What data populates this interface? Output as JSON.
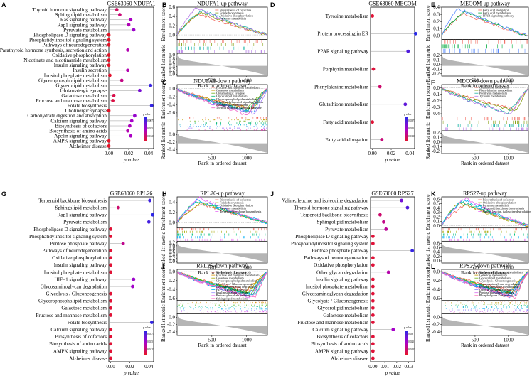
{
  "figure": {
    "panel_letters": [
      "A",
      "B",
      "C",
      "D",
      "E",
      "F",
      "G",
      "H",
      "I",
      "J",
      "K",
      "L"
    ]
  },
  "gsea_axes": {
    "y_top_label": "Enrichment score",
    "y_bottom_label": "Ranked list metric",
    "x_label": "Rank in ordered dataset",
    "x_ticks": [
      "500",
      "1000"
    ]
  },
  "chart_data": [
    {
      "type": "scatter",
      "panel": "A",
      "title": "GSE63060 NDUFA1",
      "xlabel": "p value",
      "xlim": [
        0,
        0.045
      ],
      "x_ticks": [
        "0.00",
        "0.02",
        "0.04"
      ],
      "legend_title": "p value",
      "legend_ticks": [
        "0.0075",
        "0.025",
        "0.0125"
      ],
      "categories": [
        "Thyroid hormone signaling pathway",
        "Sphingolipid metabolism",
        "Ras signaling pathway",
        "Rap1 signaling pathway",
        "Pyruvate metabolism",
        "Phospholipase D signaling pathway",
        "Phosphatidylinositol signaling system",
        "Pathways of neurodegeneration",
        "Parathyroid hormone synthesis, secretion and action",
        "Oxidative phosphorylation",
        "Nicotinate and nicotinamide metabolism",
        "Insulin signaling pathway",
        "Insulin secretion",
        "Inositol phosphate metabolism",
        "Glycerophospholipid metabolism",
        "Glycerolipid metabolism",
        "Glutamatergic synapse",
        "Galactose metabolism",
        "Fructose and mannose metabolism",
        "Folate biosynthesis",
        "Cholinergic synapse",
        "Carbohydrate digestion and absorption",
        "Calcium signaling pathway",
        "Biosynthesis of cofactors",
        "Biosynthesis of amino acids",
        "Apelin signaling pathway",
        "AMPK signaling pathway",
        "Alzheimer disease"
      ],
      "values": [
        0.008,
        0.011,
        0.022,
        0.02,
        0.025,
        0.0,
        0.0,
        0.0,
        0.019,
        0.0,
        0.0,
        0.0,
        0.019,
        0.001,
        0.013,
        0.042,
        0.031,
        0.005,
        0.004,
        0.043,
        0.0,
        0.026,
        0.023,
        0.021,
        0.019,
        0.022,
        0.0,
        0.0
      ]
    },
    {
      "type": "scatter",
      "panel": "D",
      "title": "GSE63060 MECOM",
      "xlabel": "p value",
      "xlim": [
        -0.002,
        0.045
      ],
      "x_ticks": [
        "0.00",
        "0.02",
        "0.04"
      ],
      "legend_title": "p value",
      "legend_ticks": [
        "0.0375",
        "0.025",
        "0.0125"
      ],
      "categories": [
        "Tyrosine metabolism",
        "Protein processing in ER",
        "PPAR signaling pathway",
        "Porphyrin metabolism",
        "Phenylalanine metabolism",
        "Glutathione metabolism",
        "Fatty acid metabolism",
        "Fatty acid elongation"
      ],
      "values": [
        0.0,
        0.046,
        0.038,
        0.001,
        0.008,
        0.035,
        0.0,
        0.01
      ]
    },
    {
      "type": "scatter",
      "panel": "G",
      "title": "GSE63060 RPL26",
      "xlabel": "p value",
      "xlim": [
        -0.002,
        0.045
      ],
      "x_ticks": [
        "0.00",
        "0.02",
        "0.04"
      ],
      "legend_title": "p value",
      "legend_ticks": [
        "0.0375",
        "0.025",
        "0.0125"
      ],
      "categories": [
        "Terpenoid backbone biosynthesis",
        "Sphingolipid metabolism",
        "Rap1 signaling pathway",
        "Pyruvate metabolism",
        "Phospholipase D signaling pathway",
        "Phosphatidylinositol signaling system",
        "Pentose phosphate pathway",
        "Pathways of neurodegeneration",
        "Oxidative phosphorylation",
        "Insulin signaling pathway",
        "Inositol phosphate metabolism",
        "HIF−1 signaling pathway",
        "Glycosaminoglycan degradation",
        "Glycolysis / Gluconeogenesis",
        "Glycerophospholipid metabolism",
        "Galactose metabolism",
        "Fructose and mannose metabolism",
        "Folate biosynthesis",
        "Calcium signaling pathway",
        "Biosynthesis of cofactors",
        "Biosynthesis of amino acids",
        "AMPK signaling pathway",
        "Alzheimer disease"
      ],
      "values": [
        0.041,
        0.008,
        0.044,
        0.04,
        0.0,
        0.0,
        0.013,
        0.0,
        0.0,
        0.0,
        0.0,
        0.024,
        0.023,
        0.0,
        0.0,
        0.0,
        0.0,
        0.043,
        0.0,
        0.0,
        0.0,
        0.0,
        0.0
      ]
    },
    {
      "type": "scatter",
      "panel": "J",
      "title": "GSE63060 RPS27",
      "xlabel": "p value",
      "xlim": [
        -0.002,
        0.035
      ],
      "x_ticks": [
        "0.00",
        "0.01",
        "0.02",
        "0.03"
      ],
      "legend_title": "p value",
      "legend_ticks": [
        "0.03",
        "0.025",
        "0.0125"
      ],
      "categories": [
        "Valine, leucine and isoleucine degradation",
        "Thyroid hormone signaling pathway",
        "Terpenoid backbone biosynthesis",
        "Sphingolipid metabolism",
        "Pyruvate metabolism",
        "Phospholipase D signaling pathway",
        "Phosphatidylinositol signaling system",
        "Pentose phosphate pathway",
        "Pathways of neurodegeneration",
        "Oxidative phosphorylation",
        "Other glycan degradation",
        "Insulin signaling pathway",
        "Inositol phosphate metabolism",
        "Glycosaminoglycan degradation",
        "Glycolysis / Gluconeogenesis",
        "Glycerolipid metabolism",
        "Galactose metabolism",
        "Fructose and mannose metabolism",
        "Calcium signaling pathway",
        "Biosynthesis of cofactors",
        "Biosynthesis of amino acids",
        "AMPK signaling pathway",
        "Alzheimer disease"
      ],
      "values": [
        0.024,
        0.029,
        0.006,
        0.009,
        0.011,
        0.0,
        0.0,
        0.033,
        0.0,
        0.0,
        0.013,
        0.0,
        0.0,
        0.0,
        0.0,
        0.0,
        0.0,
        0.0,
        0.017,
        0.0,
        0.0,
        0.0,
        0.0
      ]
    },
    {
      "type": "line",
      "panel": "B",
      "title": "NDUFA1-up pathway",
      "ylim": [
        -0.1,
        0.6
      ],
      "y_ticks": [
        "0.0",
        "0.2",
        "0.4",
        "0.6"
      ],
      "metric_ticks": [
        "1.0",
        "0.8",
        "0.6",
        "0.4",
        "0.2",
        "0.0"
      ],
      "series": [
        {
          "name": "Biosynthesis of cofactors",
          "color": "#f26a5f"
        },
        {
          "name": "Folate biosynthesis",
          "color": "#8aa21c"
        },
        {
          "name": "Oxidative phosphorylation",
          "color": "#1bb3a5"
        },
        {
          "name": "Pyruvate metabolism",
          "color": "#b57ae8"
        }
      ]
    },
    {
      "type": "line",
      "panel": "C",
      "title": "NDUFA1-down pathway",
      "ylim": [
        -0.7,
        0.1
      ],
      "y_ticks": [
        "0.0",
        "-0.2",
        "-0.4",
        "-0.6"
      ],
      "metric_ticks": [
        "0.0",
        "-0.2",
        "-0.4"
      ],
      "series": [
        {
          "name": "Fructose and mannose metabolism",
          "color": "#f26a5f"
        },
        {
          "name": "Galactose metabolism",
          "color": "#c59a00"
        },
        {
          "name": "Glutamatergic synapse",
          "color": "#6fb21b"
        },
        {
          "name": "Glycerolipid metabolism",
          "color": "#00b66b"
        },
        {
          "name": "Glycerophospholipid metabolism",
          "color": "#00b2c8"
        },
        {
          "name": "Phosphatidylinositol signaling system",
          "color": "#2f9bf0"
        },
        {
          "name": "Sphingolipid metabolism",
          "color": "#a67bff"
        },
        {
          "name": "Thyroid hormone signaling pathway",
          "color": "#f05fc6"
        }
      ]
    },
    {
      "type": "line",
      "panel": "E",
      "title": "MECOM-up pathway",
      "ylim": [
        -0.05,
        0.4
      ],
      "y_ticks": [
        "0.0",
        "0.1",
        "0.2",
        "0.3",
        "0.4"
      ],
      "metric_ticks": [
        "0.2",
        "0.1",
        "0.0",
        "-0.1",
        "-0.2"
      ],
      "series": [
        {
          "name": "Fatty acid elongation",
          "color": "#f26a5f"
        },
        {
          "name": "Fatty acid metabolism",
          "color": "#00a83c"
        },
        {
          "name": "PPAR signaling pathway",
          "color": "#5a8cff"
        }
      ]
    },
    {
      "type": "line",
      "panel": "F",
      "title": "MECOM-down pathway",
      "ylim": [
        -0.45,
        0.05
      ],
      "y_ticks": [
        "0.0",
        "-0.1",
        "-0.2",
        "-0.3",
        "-0.4"
      ],
      "metric_ticks": [
        "0.2",
        "0.1",
        "0.0",
        "-0.1",
        "-0.2"
      ],
      "series": [
        {
          "name": "Glutathione metabolism",
          "color": "#f26a5f"
        },
        {
          "name": "Phenylalanine metabolism",
          "color": "#8aa21c"
        },
        {
          "name": "Porphyrin metabolism",
          "color": "#1bb3a5"
        },
        {
          "name": "Tyrosine metabolism",
          "color": "#b57ae8"
        }
      ]
    },
    {
      "type": "line",
      "panel": "H",
      "title": "RPL26-up pathway",
      "ylim": [
        -0.1,
        0.5
      ],
      "y_ticks": [
        "0.0",
        "0.2",
        "0.4"
      ],
      "metric_ticks": [
        "1.2",
        "1.0",
        "0.8",
        "0.6",
        "0.4",
        "0.2",
        "0.0"
      ],
      "series": [
        {
          "name": "Biosynthesis of cofactors",
          "color": "#f26a5f"
        },
        {
          "name": "Folate biosynthesis",
          "color": "#a3a500"
        },
        {
          "name": "Oxidative phosphorylation",
          "color": "#00bf7d"
        },
        {
          "name": "Pyruvate metabolism",
          "color": "#00b0f6"
        },
        {
          "name": "Terpenoid backbone biosynthesis",
          "color": "#e76bf3"
        }
      ]
    },
    {
      "type": "line",
      "panel": "I",
      "title": "RPL26-down pathway",
      "ylim": [
        -0.65,
        0.05
      ],
      "y_ticks": [
        "0.0",
        "-0.2",
        "-0.4",
        "-0.6"
      ],
      "metric_ticks": [
        "0.0",
        "-0.2",
        "-0.4"
      ],
      "series": [
        {
          "name": "Biosynthesis of amino acids",
          "color": "#f26a5f"
        },
        {
          "name": "Fructose and mannose metabolism",
          "color": "#d89000"
        },
        {
          "name": "Galactose metabolism",
          "color": "#a3a500"
        },
        {
          "name": "Glycerophospholipid metabolism",
          "color": "#39b600"
        },
        {
          "name": "Glycolysis / Gluconeogenesis",
          "color": "#00bf7d"
        },
        {
          "name": "Glycosaminoglycan degradation",
          "color": "#00bfc4"
        },
        {
          "name": "HIF-1 signaling pathway",
          "color": "#00b0f6"
        },
        {
          "name": "Insulin signaling pathway",
          "color": "#9590ff"
        },
        {
          "name": "Pentose phosphate pathway",
          "color": "#e76bf3"
        },
        {
          "name": "Sphingolipid metabolism",
          "color": "#ff62bc"
        }
      ]
    },
    {
      "type": "line",
      "panel": "K",
      "title": "RPS27-up pathway",
      "ylim": [
        -0.05,
        0.65
      ],
      "y_ticks": [
        "0.0",
        "0.1",
        "0.2",
        "0.3",
        "0.4",
        "0.5",
        "0.6"
      ],
      "metric_ticks": [
        "0.8",
        "0.6",
        "0.4",
        "0.2",
        "0.0"
      ],
      "series": [
        {
          "name": "Biosynthesis of cofactors",
          "color": "#f26a5f"
        },
        {
          "name": "Oxidative phosphorylation",
          "color": "#a3a500"
        },
        {
          "name": "Pyruvate metabolism",
          "color": "#00bf7d"
        },
        {
          "name": "Terpenoid backbone biosynthesis",
          "color": "#00b0f6"
        },
        {
          "name": "Valine, leucine, isoleucine degradation",
          "color": "#e76bf3"
        }
      ]
    },
    {
      "type": "line",
      "panel": "L",
      "title": "RPS27-down pathway",
      "ylim": [
        -0.65,
        0.05
      ],
      "y_ticks": [
        "0.0",
        "-0.2",
        "-0.4",
        "-0.6"
      ],
      "metric_ticks": [
        "0.0",
        "-0.2",
        "-0.4"
      ],
      "series": [
        {
          "name": "Fructose and mannose metabolism",
          "color": "#f26a5f"
        },
        {
          "name": "Galactose metabolism",
          "color": "#c59a00"
        },
        {
          "name": "Glycerolipid metabolism",
          "color": "#6fb21b"
        },
        {
          "name": "Glycolysis / Gluconeogenesis",
          "color": "#00b66b"
        },
        {
          "name": "Glycosaminoglycan degradation",
          "color": "#00b2c8"
        },
        {
          "name": "Inositol phosphate metabolism",
          "color": "#00a6ff"
        },
        {
          "name": "Other glycan degradation",
          "color": "#8b7dff"
        },
        {
          "name": "Pentose phosphate pathway",
          "color": "#d86cf0"
        },
        {
          "name": "Phospholipase D signaling",
          "color": "#ff5fb0"
        }
      ]
    }
  ]
}
